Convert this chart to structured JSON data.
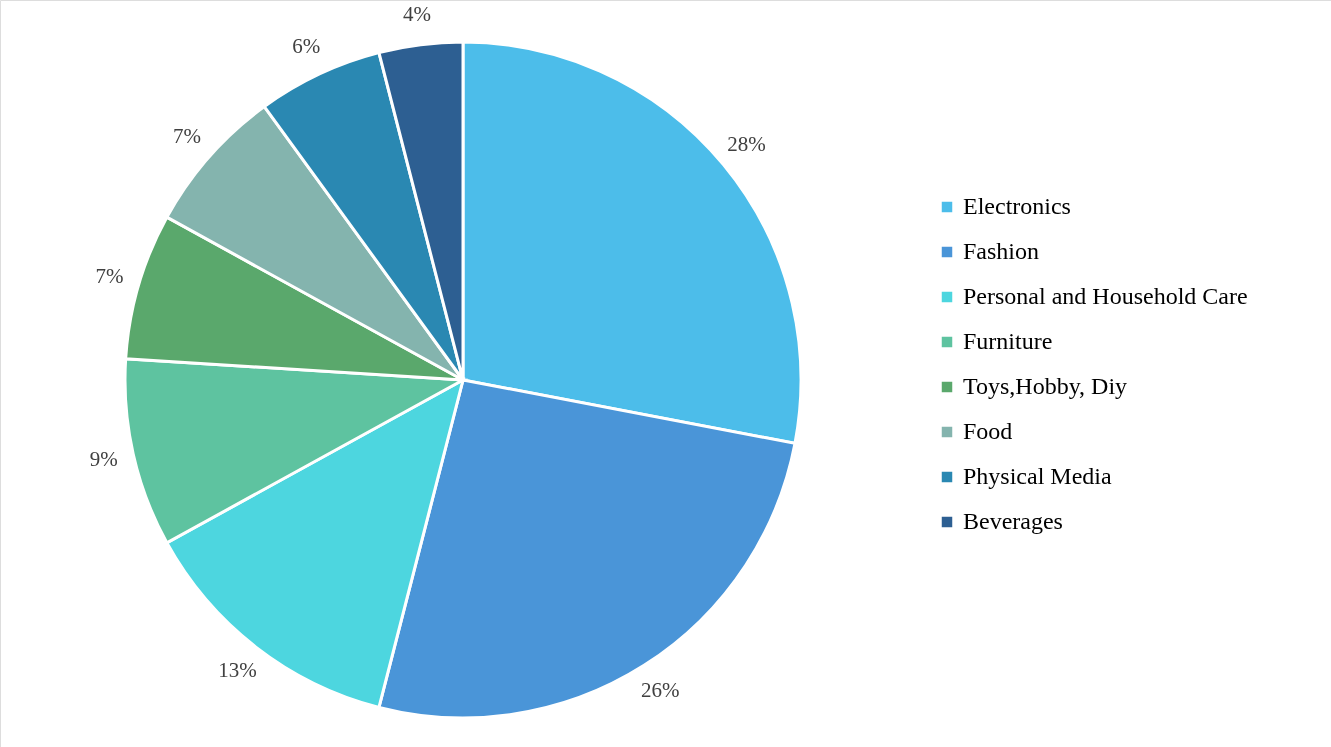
{
  "chart_data": {
    "type": "pie",
    "categories": [
      "Electronics",
      "Fashion",
      "Personal and Household Care",
      "Furniture",
      "Toys,Hobby, Diy",
      "Food",
      "Physical Media",
      "Beverages"
    ],
    "values": [
      28,
      26,
      13,
      9,
      7,
      7,
      6,
      4
    ],
    "value_labels": [
      "28%",
      "26%",
      "13%",
      "9%",
      "7%",
      "7%",
      "6%",
      "4%"
    ],
    "colors": [
      "#4cbdea",
      "#4a95d8",
      "#4dd6df",
      "#5ec3a0",
      "#5aa86c",
      "#84b4ae",
      "#2a88b2",
      "#2d5f92"
    ],
    "legend": "right"
  }
}
